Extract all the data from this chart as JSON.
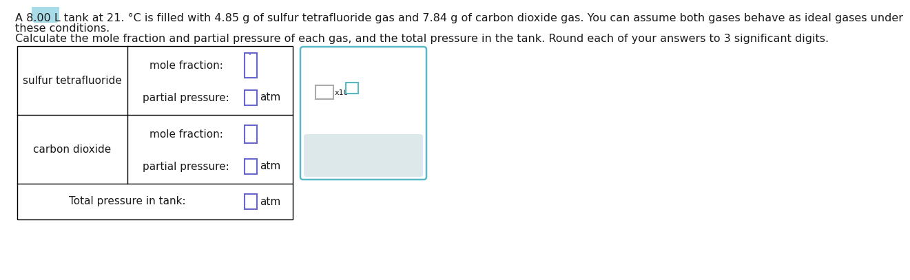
{
  "title_line1": "A 8.00 L tank at 21. °C is filled with 4.85 g of sulfur tetrafluoride gas and 7.84 g of carbon dioxide gas. You can assume both gases behave as ideal gases under",
  "title_line2": "these conditions.",
  "subtitle": "Calculate the mole fraction and partial pressure of each gas, and the total pressure in the tank. Round each of your answers to 3 significant digits.",
  "row1_label": "sulfur tetrafluoride",
  "row2_label": "carbon dioxide",
  "mole_fraction_label": "mole fraction:",
  "partial_pressure_label": "partial pressure:",
  "total_pressure_label": "Total pressure in tank:",
  "atm_label": "atm",
  "background": "#ffffff",
  "table_border_color": "#000000",
  "input_box_color": "#6666cc",
  "popup_border_color": "#5ab8c4",
  "popup_bg": "#ffffff",
  "popup_footer_bg": "#dce8ea",
  "x10_label": "x10",
  "popup_icons": [
    "×",
    "↺",
    "?"
  ],
  "icon_color": "#4a9aaa",
  "logo_color": "#a8dce8",
  "text_color": "#1a1a1a",
  "font_size_body": 11.5,
  "font_size_table": 11,
  "font_size_icons": 16
}
